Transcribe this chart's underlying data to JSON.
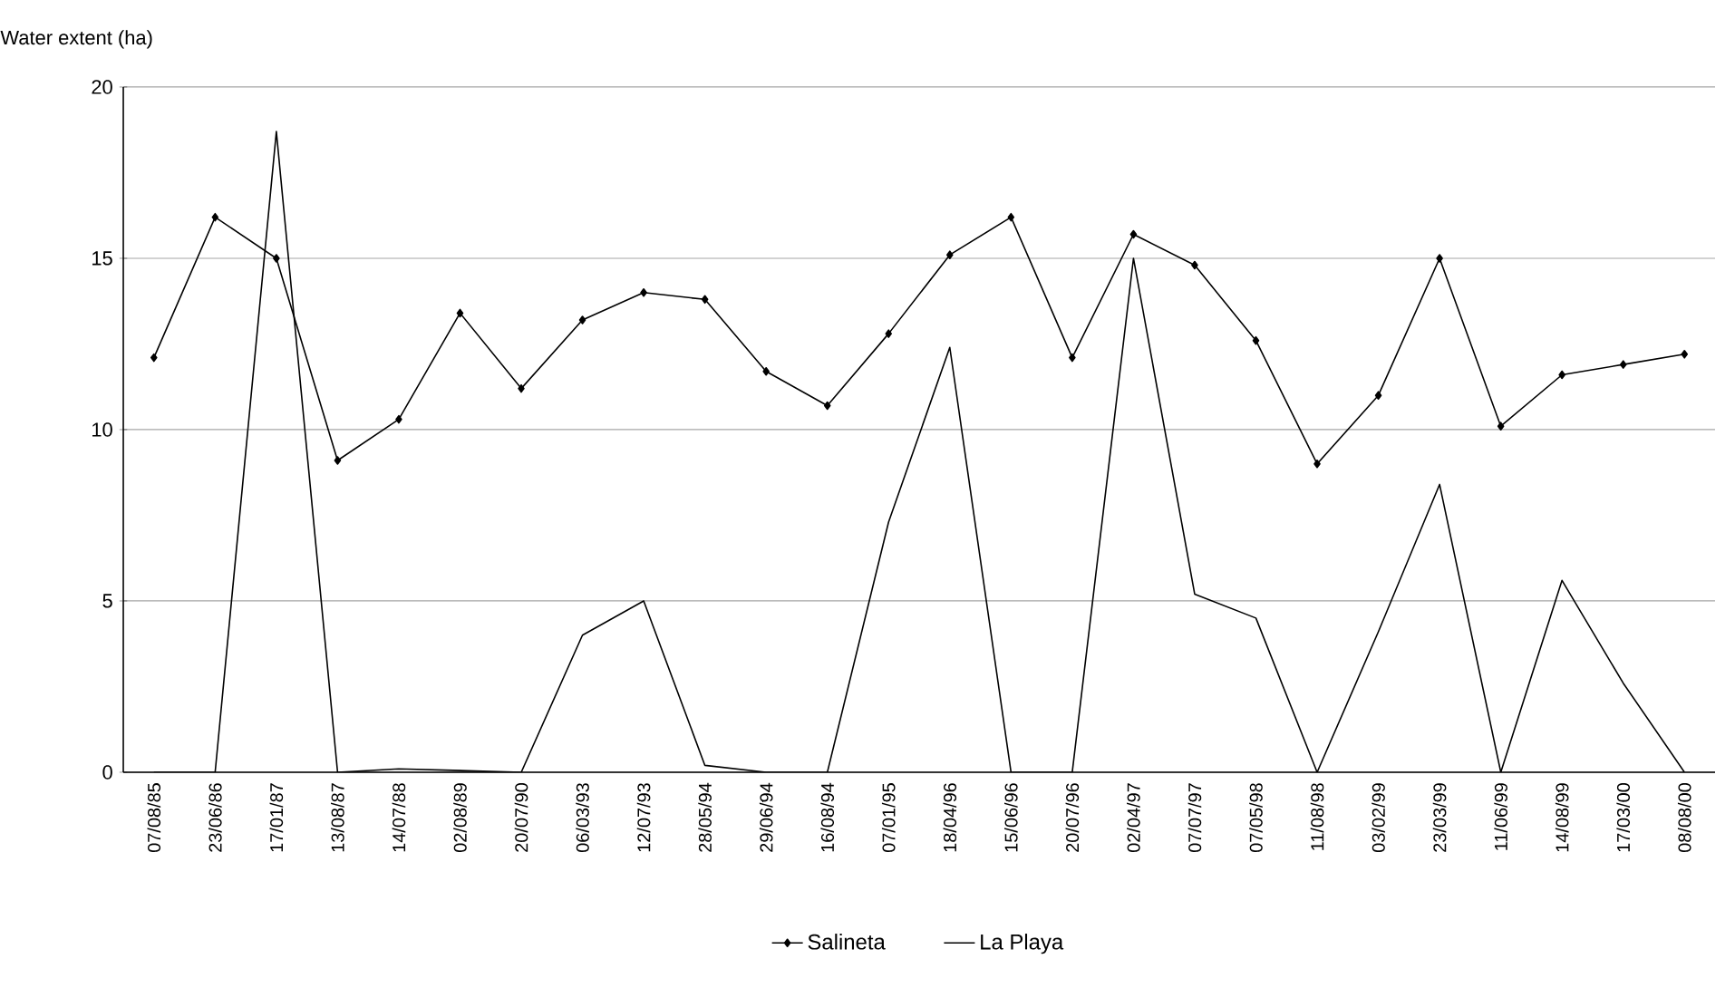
{
  "chart_data": {
    "type": "line",
    "ylabel": "Water extent (ha)",
    "categories": [
      "07/08/85",
      "23/06/86",
      "17/01/87",
      "13/08/87",
      "14/07/88",
      "02/08/89",
      "20/07/90",
      "06/03/93",
      "12/07/93",
      "28/05/94",
      "29/06/94",
      "16/08/94",
      "07/01/95",
      "18/04/96",
      "15/06/96",
      "20/07/96",
      "02/04/97",
      "07/07/97",
      "07/05/98",
      "11/08/98",
      "03/02/99",
      "23/03/99",
      "11/06/99",
      "14/08/99",
      "17/03/00",
      "08/08/00"
    ],
    "series": [
      {
        "name": "Salineta",
        "color": "#000000",
        "marker": "diamond",
        "values": [
          12.1,
          16.2,
          15.0,
          9.1,
          10.3,
          13.4,
          11.2,
          13.2,
          14.0,
          13.8,
          11.7,
          10.7,
          12.8,
          15.1,
          16.2,
          12.1,
          15.7,
          14.8,
          12.6,
          9.0,
          11.0,
          15.0,
          10.1,
          11.6,
          11.9,
          12.2
        ]
      },
      {
        "name": "La Playa",
        "color": "#000000",
        "marker": "none",
        "values": [
          0,
          0,
          18.7,
          0,
          0.1,
          0.05,
          0,
          4.0,
          5.0,
          0.2,
          0,
          0,
          7.3,
          12.4,
          0,
          0,
          15.0,
          5.2,
          4.5,
          0,
          4.1,
          8.4,
          0,
          5.6,
          2.6,
          0
        ]
      }
    ],
    "ylim": [
      0,
      20
    ],
    "yticks": [
      0,
      5,
      10,
      15,
      20
    ],
    "grid": "y",
    "legend": "bottom",
    "line_style": "solid"
  }
}
